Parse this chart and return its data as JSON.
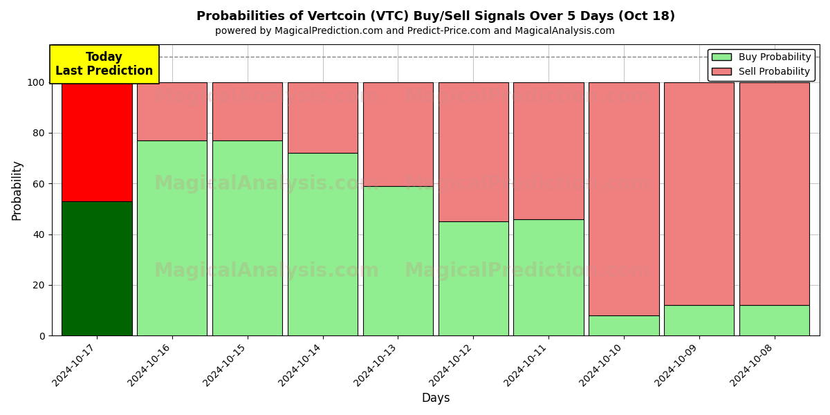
{
  "title": "Probabilities of Vertcoin (VTC) Buy/Sell Signals Over 5 Days (Oct 18)",
  "subtitle": "powered by MagicalPrediction.com and Predict-Price.com and MagicalAnalysis.com",
  "xlabel": "Days",
  "ylabel": "Probability",
  "categories": [
    "2024-10-17",
    "2024-10-16",
    "2024-10-15",
    "2024-10-14",
    "2024-10-13",
    "2024-10-12",
    "2024-10-11",
    "2024-10-10",
    "2024-10-09",
    "2024-10-08"
  ],
  "buy_values": [
    53,
    77,
    77,
    72,
    59,
    45,
    46,
    8,
    12,
    12
  ],
  "sell_values": [
    47,
    23,
    23,
    28,
    41,
    55,
    54,
    92,
    88,
    88
  ],
  "today_buy_color": "#006400",
  "today_sell_color": "#ff0000",
  "buy_color": "#90EE90",
  "sell_color": "#F08080",
  "today_annotation": "Today\nLast Prediction",
  "today_annotation_bg": "#ffff00",
  "dashed_line_y": 110,
  "ylim": [
    0,
    115
  ],
  "yticks": [
    0,
    20,
    40,
    60,
    80,
    100
  ],
  "legend_buy_label": "Buy Probability",
  "legend_sell_label": "Sell Probability",
  "background_color": "#ffffff",
  "grid_color": "#aaaaaa",
  "bar_edge_color": "#000000",
  "bar_linewidth": 0.8,
  "bar_width": 0.93,
  "watermark1": "MagicalAnalysis.com",
  "watermark2": "MagicalPrediction.com",
  "watermark_fontsize": 20,
  "watermark_alpha": 0.25
}
